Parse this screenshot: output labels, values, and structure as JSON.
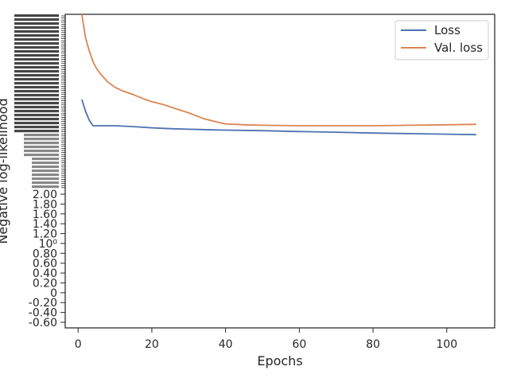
{
  "chart_data": {
    "type": "line",
    "xlabel": "Epochs",
    "ylabel": "Negative log-likelihood",
    "xlim": [
      -3.5,
      113
    ],
    "x_ticks": [
      0,
      20,
      40,
      60,
      80,
      100
    ],
    "legend_position": "top-right",
    "grid": false,
    "y_ticks": [
      {
        "value": -0.6,
        "label": "-0.60"
      },
      {
        "value": -0.4,
        "label": "-0.40"
      },
      {
        "value": -0.2,
        "label": "-0.20"
      },
      {
        "value": 0,
        "label": "0"
      },
      {
        "value": 0.2,
        "label": "0.20"
      },
      {
        "value": 0.4,
        "label": "0.40"
      },
      {
        "value": 0.6,
        "label": "0.60"
      },
      {
        "value": 0.8,
        "label": "0.80"
      },
      {
        "value": 1.0,
        "label": "10⁰"
      },
      {
        "value": 1.2,
        "label": "1.20"
      },
      {
        "value": 1.4,
        "label": "1.40"
      },
      {
        "value": 1.6,
        "label": "1.60"
      },
      {
        "value": 1.8,
        "label": "1.80"
      },
      {
        "value": 2.0,
        "label": "2.00"
      }
    ],
    "series": [
      {
        "name": "Loss",
        "color": "#4c72b0",
        "x": [
          1,
          2,
          3,
          4,
          5,
          6,
          8,
          10,
          15,
          20,
          25,
          30,
          40,
          50,
          60,
          70,
          80,
          90,
          100,
          108
        ],
        "y": [
          6.34,
          6.01,
          5.82,
          5.7,
          5.63,
          5.6,
          5.56,
          5.53,
          5.47,
          5.43,
          5.4,
          5.38,
          5.35,
          5.33,
          5.3,
          5.28,
          5.25,
          5.23,
          5.21,
          5.19
        ]
      },
      {
        "name": "Val. loss",
        "color": "#dd8452",
        "x": [
          1,
          2,
          3,
          4,
          5,
          6,
          8,
          10,
          12,
          15,
          18,
          20,
          23,
          27,
          30,
          34,
          38,
          40,
          45,
          50,
          60,
          70,
          80,
          90,
          100,
          108
        ],
        "y": [
          8.6,
          8.05,
          7.8,
          7.6,
          7.45,
          7.3,
          7.05,
          6.82,
          6.65,
          6.48,
          6.35,
          6.28,
          6.2,
          6.06,
          5.97,
          5.85,
          5.77,
          5.74,
          5.72,
          5.71,
          5.7,
          5.69,
          5.7,
          5.71,
          5.72,
          5.73
        ]
      }
    ]
  }
}
